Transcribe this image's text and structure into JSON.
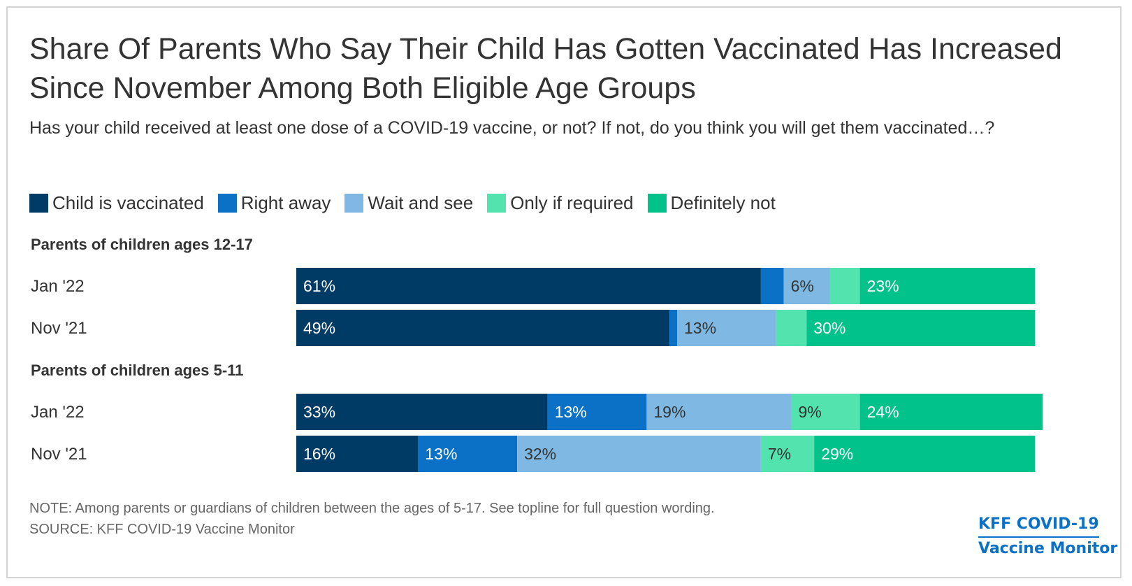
{
  "title": "Share Of Parents Who Say Their Child Has Gotten Vaccinated Has Increased Since November Among Both Eligible Age Groups",
  "subtitle": "Has your child received at least one dose of a COVID-19 vaccine, or not? If not, do you think you will get them vaccinated…?",
  "colors": {
    "child_vaccinated": "#003b66",
    "right_away": "#0a71c6",
    "wait_and_see": "#7fb9e3",
    "only_if_required": "#52e3ae",
    "definitely_not": "#00c28a"
  },
  "legend": [
    {
      "label": "Child is vaccinated",
      "color": "#003b66"
    },
    {
      "label": "Right away",
      "color": "#0a71c6"
    },
    {
      "label": "Wait and see",
      "color": "#7fb9e3"
    },
    {
      "label": "Only if required",
      "color": "#52e3ae"
    },
    {
      "label": "Definitely not",
      "color": "#00c28a"
    }
  ],
  "chart_data": {
    "type": "bar",
    "orientation": "horizontal",
    "stacked": true,
    "xlim": [
      0,
      100
    ],
    "series_names": [
      "Child is vaccinated",
      "Right away",
      "Wait and see",
      "Only if required",
      "Definitely not"
    ],
    "groups": [
      {
        "label": "Parents of children ages 12-17",
        "rows": [
          {
            "label": "Jan '22",
            "values": [
              61,
              3,
              6,
              4,
              23
            ],
            "data_labels": [
              "61%",
              "",
              "6%",
              "",
              "23%"
            ]
          },
          {
            "label": "Nov '21",
            "values": [
              49,
              1,
              13,
              4,
              30
            ],
            "data_labels": [
              "49%",
              "",
              "13%",
              "",
              "30%"
            ]
          }
        ]
      },
      {
        "label": "Parents of children ages 5-11",
        "rows": [
          {
            "label": "Jan '22",
            "values": [
              33,
              13,
              19,
              9,
              24
            ],
            "data_labels": [
              "33%",
              "13%",
              "19%",
              "9%",
              "24%"
            ]
          },
          {
            "label": "Nov '21",
            "values": [
              16,
              13,
              32,
              7,
              29
            ],
            "data_labels": [
              "16%",
              "13%",
              "32%",
              "7%",
              "29%"
            ]
          }
        ]
      }
    ]
  },
  "footer": {
    "note": "NOTE: Among parents or guardians of children between the ages of 5-17. See topline for full question wording.",
    "source": "SOURCE: KFF COVID-19 Vaccine Monitor"
  },
  "logo": {
    "line1": "KFF COVID-19",
    "line2": "Vaccine Monitor"
  }
}
